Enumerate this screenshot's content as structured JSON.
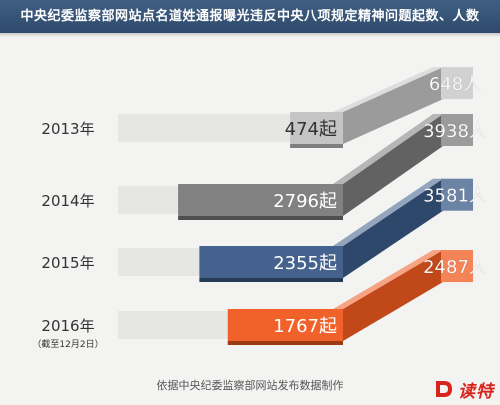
{
  "header": {
    "title": "中央纪委监察部网站点名道姓通报曝光违反中央八项规定精神问题起数、人数"
  },
  "footer": {
    "source": "依据中央纪委监察部网站发布数据制作"
  },
  "brand": {
    "text": "读特",
    "color": "#d7251d"
  },
  "chart_data": {
    "type": "bar",
    "title": "中央纪委监察部网站点名道姓通报曝光违反中央八项规定精神问题起数、人数",
    "categories": [
      "2013年",
      "2014年",
      "2015年",
      "2016年"
    ],
    "category_notes": [
      "",
      "",
      "",
      "（截至12月2日）"
    ],
    "series": [
      {
        "name": "起",
        "values": [
          474,
          2796,
          2355,
          1767
        ],
        "unit_suffix": "起"
      },
      {
        "name": "人",
        "values": [
          648,
          3938,
          3581,
          2487
        ],
        "unit_suffix": "人"
      }
    ],
    "colors": [
      "#c2c2c2",
      "#7a7a7a",
      "#3a5a87",
      "#f05a1f"
    ],
    "style": "3d-horizontal-bars",
    "legend": "none",
    "grid": false
  }
}
